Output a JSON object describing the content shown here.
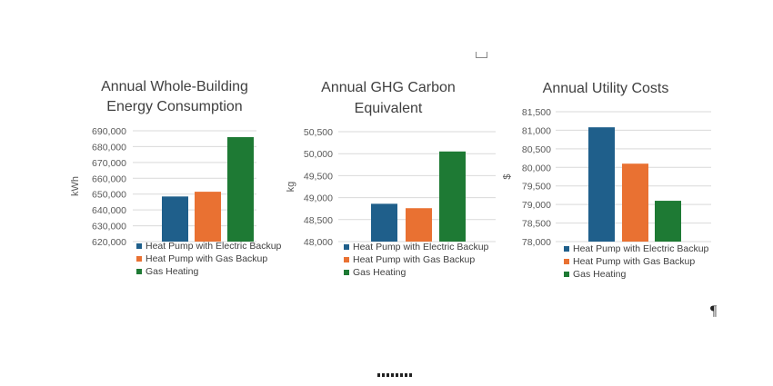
{
  "page": {
    "pilcrow": "¶"
  },
  "legend": [
    {
      "name": "Heat Pump with Electric Backup",
      "color": "#1f5f8b"
    },
    {
      "name": "Heat Pump with Gas Backup",
      "color": "#e97132"
    },
    {
      "name": "Gas Heating",
      "color": "#1e7a34"
    }
  ],
  "chart_data": [
    {
      "type": "bar",
      "title": [
        "Annual Whole-Building",
        "Energy Consumption"
      ],
      "ylabel": "kWh",
      "categories": [
        "Heat Pump with Electric Backup",
        "Heat Pump with Gas Backup",
        "Gas Heating"
      ],
      "values": [
        648500,
        651500,
        686000
      ],
      "ylim": [
        620000,
        690000
      ],
      "yticks": [
        620000,
        630000,
        640000,
        650000,
        660000,
        670000,
        680000,
        690000
      ],
      "tick_labels": [
        "620,000",
        "630,000",
        "640,000",
        "650,000",
        "660,000",
        "670,000",
        "680,000",
        "690,000"
      ],
      "grid": true,
      "legend_position": "bottom"
    },
    {
      "type": "bar",
      "title": [
        "Annual GHG Carbon",
        "Equivalent"
      ],
      "ylabel": "kg",
      "categories": [
        "Heat Pump with Electric Backup",
        "Heat Pump with Gas Backup",
        "Gas Heating"
      ],
      "values": [
        48860,
        48760,
        50050
      ],
      "ylim": [
        48000,
        50500
      ],
      "yticks": [
        48000,
        48500,
        49000,
        49500,
        50000,
        50500
      ],
      "tick_labels": [
        "48,000",
        "48,500",
        "49,000",
        "49,500",
        "50,000",
        "50,500"
      ],
      "grid": true,
      "legend_position": "bottom"
    },
    {
      "type": "bar",
      "title": [
        "Annual Utility Costs"
      ],
      "ylabel": "$",
      "categories": [
        "Heat Pump with Electric Backup",
        "Heat Pump with Gas Backup",
        "Gas Heating"
      ],
      "values": [
        81080,
        80100,
        79100
      ],
      "ylim": [
        78000,
        81500
      ],
      "yticks": [
        78000,
        78500,
        79000,
        79500,
        80000,
        80500,
        81000,
        81500
      ],
      "tick_labels": [
        "78,000",
        "78,500",
        "79,000",
        "79,500",
        "80,000",
        "80,500",
        "81,000",
        "81,500"
      ],
      "grid": true,
      "legend_position": "bottom"
    }
  ]
}
